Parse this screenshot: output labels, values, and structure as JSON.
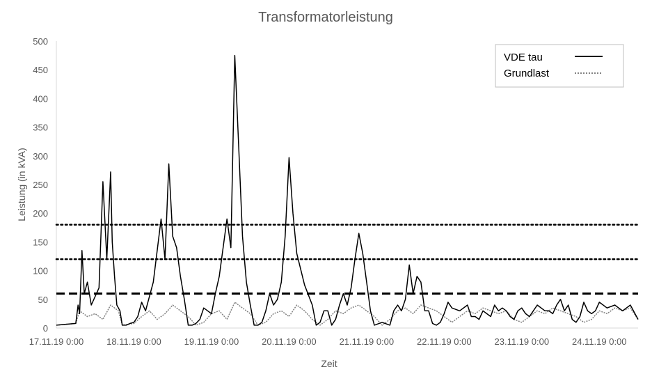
{
  "chart_data": {
    "type": "line",
    "title": "Transformatorleistung",
    "xlabel": "Zeit",
    "ylabel": "Leistung (in kVA)",
    "ylim": [
      0,
      500
    ],
    "yticks": [
      0,
      50,
      100,
      150,
      200,
      250,
      300,
      350,
      400,
      450,
      500
    ],
    "xticks": [
      "17.11.19 0:00",
      "18.11.19 0:00",
      "19.11.19 0:00",
      "20.11.19 0:00",
      "21.11.19 0:00",
      "22.11.19 0:00",
      "23.11.19 0:00",
      "24.11.19 0:00"
    ],
    "xlim_days": [
      0,
      7.5
    ],
    "grid": false,
    "legend_position": "top-right",
    "legend": [
      "VDE tau",
      "Grundlast"
    ],
    "reference_lines": [
      {
        "y": 180,
        "style": "dotted"
      },
      {
        "y": 120,
        "style": "dotted"
      },
      {
        "y": 60,
        "style": "dashed"
      }
    ],
    "series": [
      {
        "name": "VDE tau",
        "style": "solid",
        "color": "#000000",
        "x": [
          0,
          0.25,
          0.28,
          0.3,
          0.33,
          0.36,
          0.4,
          0.45,
          0.55,
          0.6,
          0.65,
          0.7,
          0.72,
          0.75,
          0.78,
          0.8,
          0.82,
          0.85,
          0.88,
          0.9,
          0.95,
          1.0,
          1.05,
          1.1,
          1.15,
          1.25,
          1.35,
          1.4,
          1.45,
          1.5,
          1.55,
          1.6,
          1.65,
          1.7,
          1.75,
          1.8,
          1.85,
          1.9,
          1.95,
          2.0,
          2.05,
          2.1,
          2.2,
          2.25,
          2.3,
          2.35,
          2.4,
          2.45,
          2.5,
          2.55,
          2.6,
          2.65,
          2.7,
          2.75,
          2.8,
          2.85,
          2.9,
          2.95,
          3.0,
          3.05,
          3.1,
          3.2,
          3.3,
          3.35,
          3.4,
          3.45,
          3.5,
          3.55,
          3.6,
          3.65,
          3.7,
          3.75,
          3.8,
          3.85,
          3.9,
          3.95,
          4.0,
          4.05,
          4.1,
          4.2,
          4.3,
          4.35,
          4.4,
          4.45,
          4.5,
          4.55,
          4.6,
          4.65,
          4.7,
          4.75,
          4.8,
          4.85,
          4.9,
          4.95,
          5.0,
          5.05,
          5.1,
          5.2,
          5.3,
          5.35,
          5.4,
          5.45,
          5.5,
          5.55,
          5.6,
          5.65,
          5.7,
          5.75,
          5.8,
          5.85,
          5.9,
          5.95,
          6.0,
          6.05,
          6.1,
          6.2,
          6.3,
          6.35,
          6.4,
          6.45,
          6.5,
          6.55,
          6.6,
          6.65,
          6.7,
          6.75,
          6.8,
          6.85,
          6.9,
          6.95,
          7.0,
          7.1,
          7.2,
          7.3,
          7.4,
          7.5
        ],
        "y": [
          5,
          8,
          40,
          25,
          135,
          60,
          80,
          40,
          70,
          255,
          120,
          272,
          150,
          90,
          40,
          35,
          30,
          5,
          5,
          5,
          8,
          10,
          20,
          45,
          30,
          80,
          190,
          120,
          286,
          160,
          140,
          90,
          50,
          5,
          5,
          8,
          15,
          35,
          30,
          25,
          60,
          90,
          190,
          140,
          475,
          320,
          160,
          80,
          40,
          5,
          5,
          10,
          30,
          60,
          40,
          50,
          80,
          160,
          297,
          200,
          130,
          75,
          40,
          5,
          10,
          30,
          30,
          5,
          15,
          40,
          60,
          40,
          70,
          120,
          165,
          130,
          80,
          30,
          5,
          10,
          5,
          30,
          40,
          30,
          50,
          110,
          60,
          90,
          80,
          30,
          30,
          8,
          5,
          10,
          25,
          45,
          35,
          30,
          40,
          20,
          20,
          15,
          30,
          25,
          20,
          40,
          30,
          35,
          30,
          20,
          15,
          30,
          35,
          25,
          20,
          40,
          30,
          30,
          25,
          40,
          50,
          30,
          40,
          15,
          10,
          20,
          45,
          30,
          25,
          30,
          45,
          35,
          40,
          30,
          40,
          15
        ]
      },
      {
        "name": "Grundlast",
        "style": "dotted",
        "color": "#808080",
        "x": [
          0,
          0.25,
          0.3,
          0.4,
          0.5,
          0.6,
          0.7,
          0.8,
          0.85,
          1.0,
          1.1,
          1.2,
          1.3,
          1.4,
          1.5,
          1.6,
          1.7,
          1.8,
          1.9,
          2.0,
          2.1,
          2.2,
          2.3,
          2.4,
          2.5,
          2.6,
          2.7,
          2.8,
          2.9,
          3.0,
          3.1,
          3.2,
          3.3,
          3.4,
          3.5,
          3.6,
          3.7,
          3.8,
          3.9,
          4.0,
          4.1,
          4.2,
          4.3,
          4.4,
          4.5,
          4.6,
          4.7,
          4.8,
          4.9,
          5.0,
          5.1,
          5.2,
          5.3,
          5.4,
          5.5,
          5.6,
          5.7,
          5.8,
          5.9,
          6.0,
          6.1,
          6.2,
          6.3,
          6.4,
          6.5,
          6.6,
          6.7,
          6.8,
          6.9,
          7.0,
          7.1,
          7.2,
          7.3,
          7.4,
          7.5
        ],
        "y": [
          5,
          8,
          30,
          20,
          25,
          15,
          40,
          30,
          5,
          8,
          20,
          30,
          15,
          25,
          40,
          30,
          20,
          5,
          10,
          25,
          30,
          15,
          45,
          35,
          25,
          5,
          10,
          25,
          30,
          20,
          40,
          30,
          15,
          5,
          15,
          30,
          25,
          35,
          40,
          30,
          20,
          5,
          15,
          30,
          35,
          25,
          40,
          35,
          30,
          20,
          10,
          20,
          30,
          25,
          35,
          30,
          25,
          30,
          15,
          10,
          20,
          30,
          25,
          35,
          30,
          25,
          20,
          10,
          15,
          30,
          25,
          35,
          30,
          35,
          15
        ]
      }
    ]
  }
}
